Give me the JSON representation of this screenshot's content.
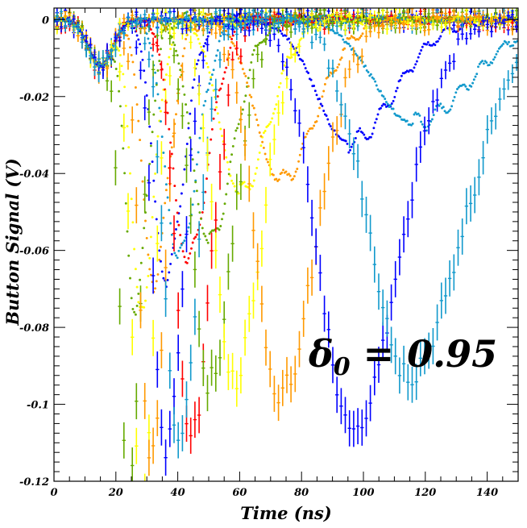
{
  "chart_data": {
    "type": "scatter",
    "title": "",
    "xlabel": "Time (ns)",
    "ylabel": "Button Signal (V)",
    "xlim": [
      0,
      150
    ],
    "ylim": [
      -0.12,
      0.003
    ],
    "x_ticks": [
      0,
      20,
      40,
      60,
      80,
      100,
      120,
      140
    ],
    "y_ticks": [
      0,
      -0.02,
      -0.04,
      -0.06,
      -0.08,
      -0.1,
      -0.12
    ],
    "x_tick_labels": [
      "0",
      "20",
      "40",
      "60",
      "80",
      "100",
      "120",
      "140"
    ],
    "y_tick_labels": [
      "0",
      "-0.02",
      "-0.04",
      "-0.06",
      "-0.08",
      "-0.1",
      "-0.12"
    ],
    "grid": false,
    "legend": "none",
    "annotation": {
      "base": "δ",
      "subscript": "0",
      "rest": " = 0.95"
    },
    "series": [
      {
        "color": "#66aa00",
        "peak_time": 26,
        "peak_value": -0.076,
        "mode": "dense"
      },
      {
        "color": "#ffff00",
        "peak_time": 28,
        "peak_value": -0.075,
        "mode": "dense"
      },
      {
        "color": "#ff9900",
        "peak_time": 32,
        "peak_value": -0.068,
        "mode": "dense"
      },
      {
        "color": "#0000ff",
        "peak_time": 36,
        "peak_value": -0.068,
        "mode": "dense"
      },
      {
        "color": "#ff0000",
        "peak_time": 43,
        "peak_value": -0.063,
        "mode": "dense"
      },
      {
        "color": "#1199cc",
        "peak_time": 40,
        "peak_value": -0.062,
        "mode": "dense"
      },
      {
        "color": "#66aa00",
        "peak_time": 50,
        "peak_value": -0.058,
        "mode": "dense"
      },
      {
        "color": "#ffff00",
        "peak_time": 60,
        "peak_value": -0.045,
        "mode": "dense"
      },
      {
        "color": "#ff9900",
        "peak_time": 73,
        "peak_value": -0.042,
        "mode": "dense"
      },
      {
        "color": "#0000ff",
        "peak_time": 95,
        "peak_value": -0.032,
        "mode": "dense"
      },
      {
        "color": "#1199cc",
        "peak_time": 116,
        "peak_value": -0.027,
        "mode": "dense"
      },
      {
        "color": "#66aa00",
        "peak_time": 24,
        "peak_value": -0.125,
        "mode": "errbar"
      },
      {
        "color": "#ffff00",
        "peak_time": 28,
        "peak_value": -0.125,
        "mode": "errbar"
      },
      {
        "color": "#ff9900",
        "peak_time": 31,
        "peak_value": -0.113,
        "mode": "errbar"
      },
      {
        "color": "#0000ff",
        "peak_time": 36,
        "peak_value": -0.112,
        "mode": "errbar"
      },
      {
        "color": "#ff0000",
        "peak_time": 44,
        "peak_value": -0.108,
        "mode": "errbar"
      },
      {
        "color": "#1199cc",
        "peak_time": 40,
        "peak_value": -0.112,
        "mode": "errbar"
      },
      {
        "color": "#66aa00",
        "peak_time": 50,
        "peak_value": -0.095,
        "mode": "errbar"
      },
      {
        "color": "#ffff00",
        "peak_time": 58,
        "peak_value": -0.093,
        "mode": "errbar"
      },
      {
        "color": "#ff9900",
        "peak_time": 73,
        "peak_value": -0.098,
        "mode": "errbar"
      },
      {
        "color": "#0000ff",
        "peak_time": 96,
        "peak_value": -0.107,
        "mode": "errbar"
      },
      {
        "color": "#1199cc",
        "peak_time": 114,
        "peak_value": -0.092,
        "mode": "errbar"
      }
    ]
  }
}
